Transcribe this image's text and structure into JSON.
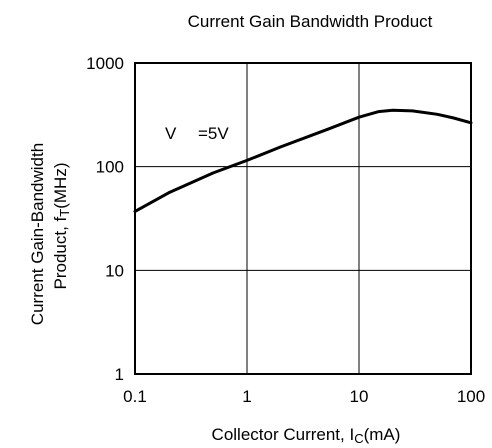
{
  "chart_data": {
    "type": "line",
    "title": "Current Gain Bandwidth Product",
    "xlabel": {
      "main": "Collector Current, I",
      "sub": "C",
      "tail": "(mA)"
    },
    "ylabel": {
      "line1": "Current Gain-Bandwidth",
      "line2_main": "Product, f",
      "line2_sub": "T",
      "line2_tail": "(MHz)"
    },
    "xscale": "log",
    "yscale": "log",
    "xlim": [
      0.1,
      100
    ],
    "ylim": [
      1,
      1000
    ],
    "x_tick_labels": [
      "0.1",
      "1",
      "10",
      "100"
    ],
    "y_tick_labels": [
      "1",
      "10",
      "100",
      "1000"
    ],
    "grid": true,
    "annotation": {
      "v": "V",
      "value": "=5V"
    },
    "series": [
      {
        "x": [
          0.1,
          0.2,
          0.5,
          1,
          2,
          5,
          10,
          15,
          20,
          30,
          50,
          70,
          100
        ],
        "y": [
          37,
          56,
          87,
          115,
          155,
          225,
          300,
          340,
          350,
          345,
          320,
          295,
          265
        ]
      }
    ],
    "colors": {
      "line": "#000000",
      "grid": "#000000",
      "frame": "#000000"
    }
  }
}
